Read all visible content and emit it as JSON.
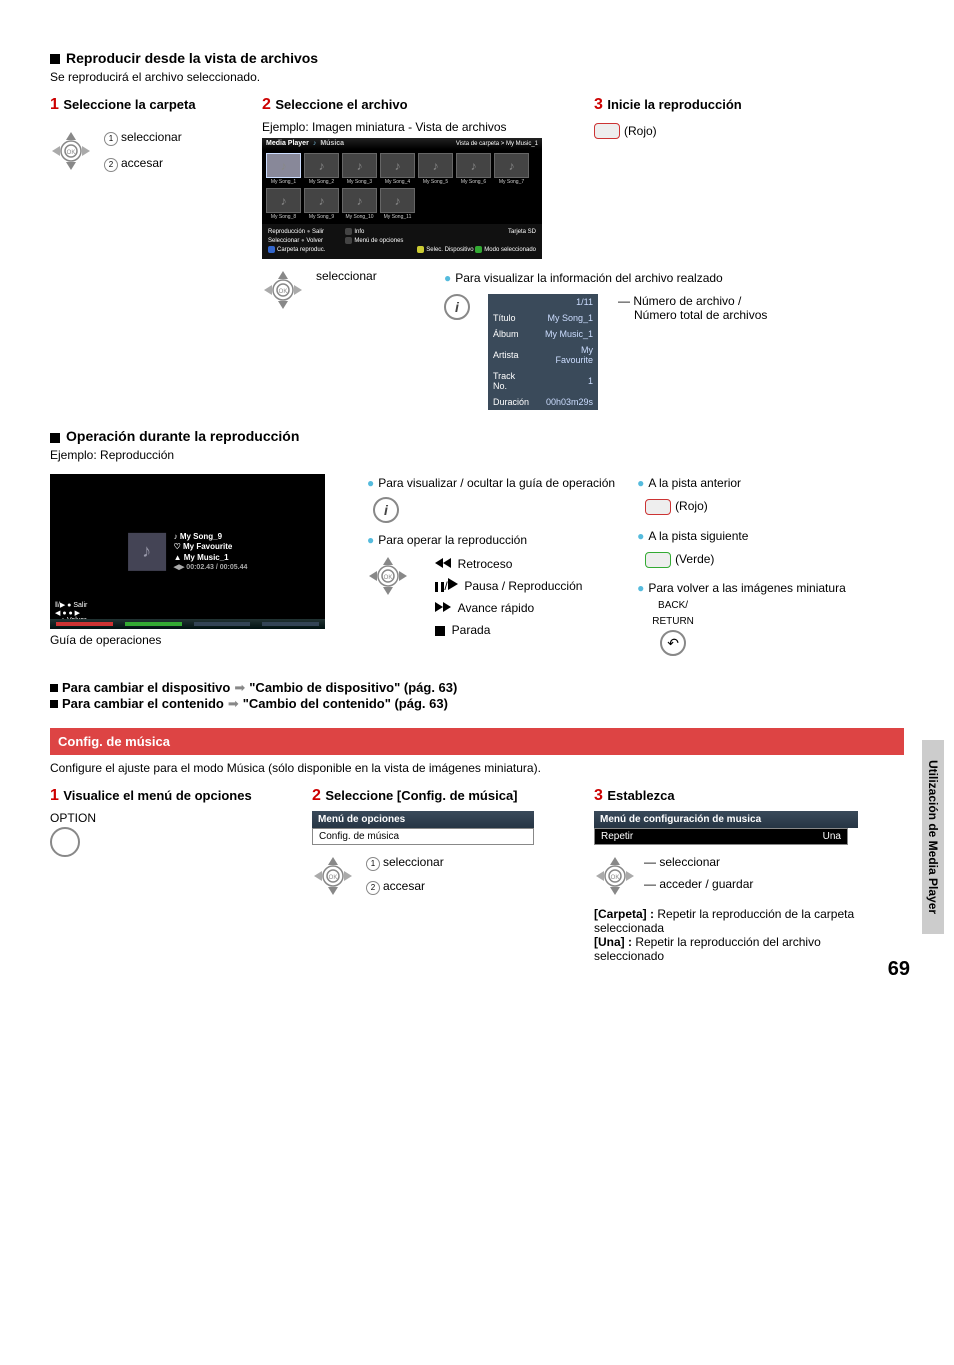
{
  "sectionA": {
    "title": "Reproducir desde la vista de archivos",
    "subtitle": "Se reproducirá el archivo seleccionado."
  },
  "stepsA": {
    "1": {
      "label": "Seleccione la carpeta",
      "a": "seleccionar",
      "b": "accesar"
    },
    "2": {
      "label": "Seleccione el archivo",
      "example": "Ejemplo: Imagen miniatura - Vista de archivos"
    },
    "3": {
      "label": "Inicie la reproducción",
      "color": "(Rojo)"
    }
  },
  "mp": {
    "title": "Media Player",
    "mode": "Música",
    "path": "Vista de carpeta > My Music_1",
    "songs": [
      "My Song_1",
      "My Song_2",
      "My Song_3",
      "My Song_4",
      "My Song_5",
      "My Song_6",
      "My Song_7",
      "My Song_8",
      "My Song_9",
      "My Song_10",
      "My Song_11"
    ],
    "foot": {
      "sd": "Tarjeta SD",
      "repro": "Reproducción",
      "salir": "Salir",
      "sel": "Seleccionar",
      "vol": "Volver",
      "car": "Carpeta reproduc.",
      "info": "Info",
      "opc": "Menú de opciones",
      "seldev": "Selec. Dispositivo",
      "modo": "Modo seleccionado"
    }
  },
  "select2": "seleccionar",
  "info": {
    "lead": "Para visualizar la información del archivo realzado",
    "num": "Número de archivo /",
    "total": "Número total de archivos",
    "count": "1/11",
    "rows": [
      [
        "Título",
        "My Song_1"
      ],
      [
        "Álbum",
        "My Music_1"
      ],
      [
        "Artista",
        "My Favourite"
      ],
      [
        "Track No.",
        "1"
      ],
      [
        "Duración",
        "00h03m29s"
      ]
    ]
  },
  "sectionB": {
    "title": "Operación durante la reproducción",
    "example": "Ejemplo: Reproducción",
    "guide": "Guía de operaciones"
  },
  "play": {
    "song": "My Song_9",
    "fav": "My Favourite",
    "alb": "My Music_1",
    "time": "00:02.43 / 00:05.44",
    "salir": "Salir",
    "volver": "Volver"
  },
  "controls": {
    "showhide": "Para visualizar / ocultar la guía de operación",
    "operate": "Para operar la reproducción",
    "rew": "Retroceso",
    "pp": "Pausa / Reproducción",
    "ff": "Avance rápido",
    "stop": "Parada",
    "prev": "A la pista anterior",
    "prevc": "(Rojo)",
    "next": "A la pista siguiente",
    "nextc": "(Verde)",
    "back": "Para volver a las imágenes miniatura",
    "br": "BACK/\nRETURN"
  },
  "refs": {
    "dev": "Para cambiar el dispositivo",
    "devlink": "\"Cambio de dispositivo\" (pág. 63)",
    "cnt": "Para cambiar el contenido",
    "cntlink": "\"Cambio del contenido\" (pág. 63)"
  },
  "cfg": {
    "title": "Config. de música",
    "subtitle": "Configure el ajuste para el modo Música (sólo disponible en la vista de imágenes miniatura).",
    "step1": "Visualice el menú de opciones",
    "option": "OPTION",
    "step2": "Seleccione [Config. de música]",
    "menuopt": "Menú de opciones",
    "menuitem": "Config. de música",
    "sel": "seleccionar",
    "acc": "accesar",
    "step3": "Establezca",
    "menucfg": "Menú de configuración de musica",
    "rep": "Repetir",
    "repv": "Una",
    "sel3": "seleccionar",
    "acc3": "acceder / guardar",
    "carpeta": "[Carpeta] :",
    "carpetatxt": " Repetir la reproducción de la carpeta seleccionada",
    "una": "[Una] :",
    "unatxt": " Repetir la reproducción del archivo seleccionado"
  },
  "side": "Utilización de Media Player",
  "page": "69"
}
